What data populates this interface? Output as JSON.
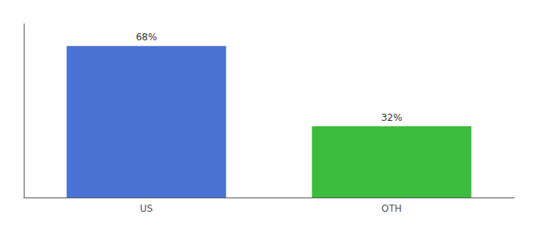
{
  "chart_data": {
    "type": "bar",
    "categories": [
      "US",
      "OTH"
    ],
    "values": [
      68,
      32
    ],
    "colors": [
      "#4a72d4",
      "#3dbb3d"
    ],
    "data_labels": true,
    "value_labels": [
      "68%",
      "32%"
    ],
    "ylim": [
      0,
      78
    ],
    "grid": false,
    "tick_labels": "x"
  }
}
